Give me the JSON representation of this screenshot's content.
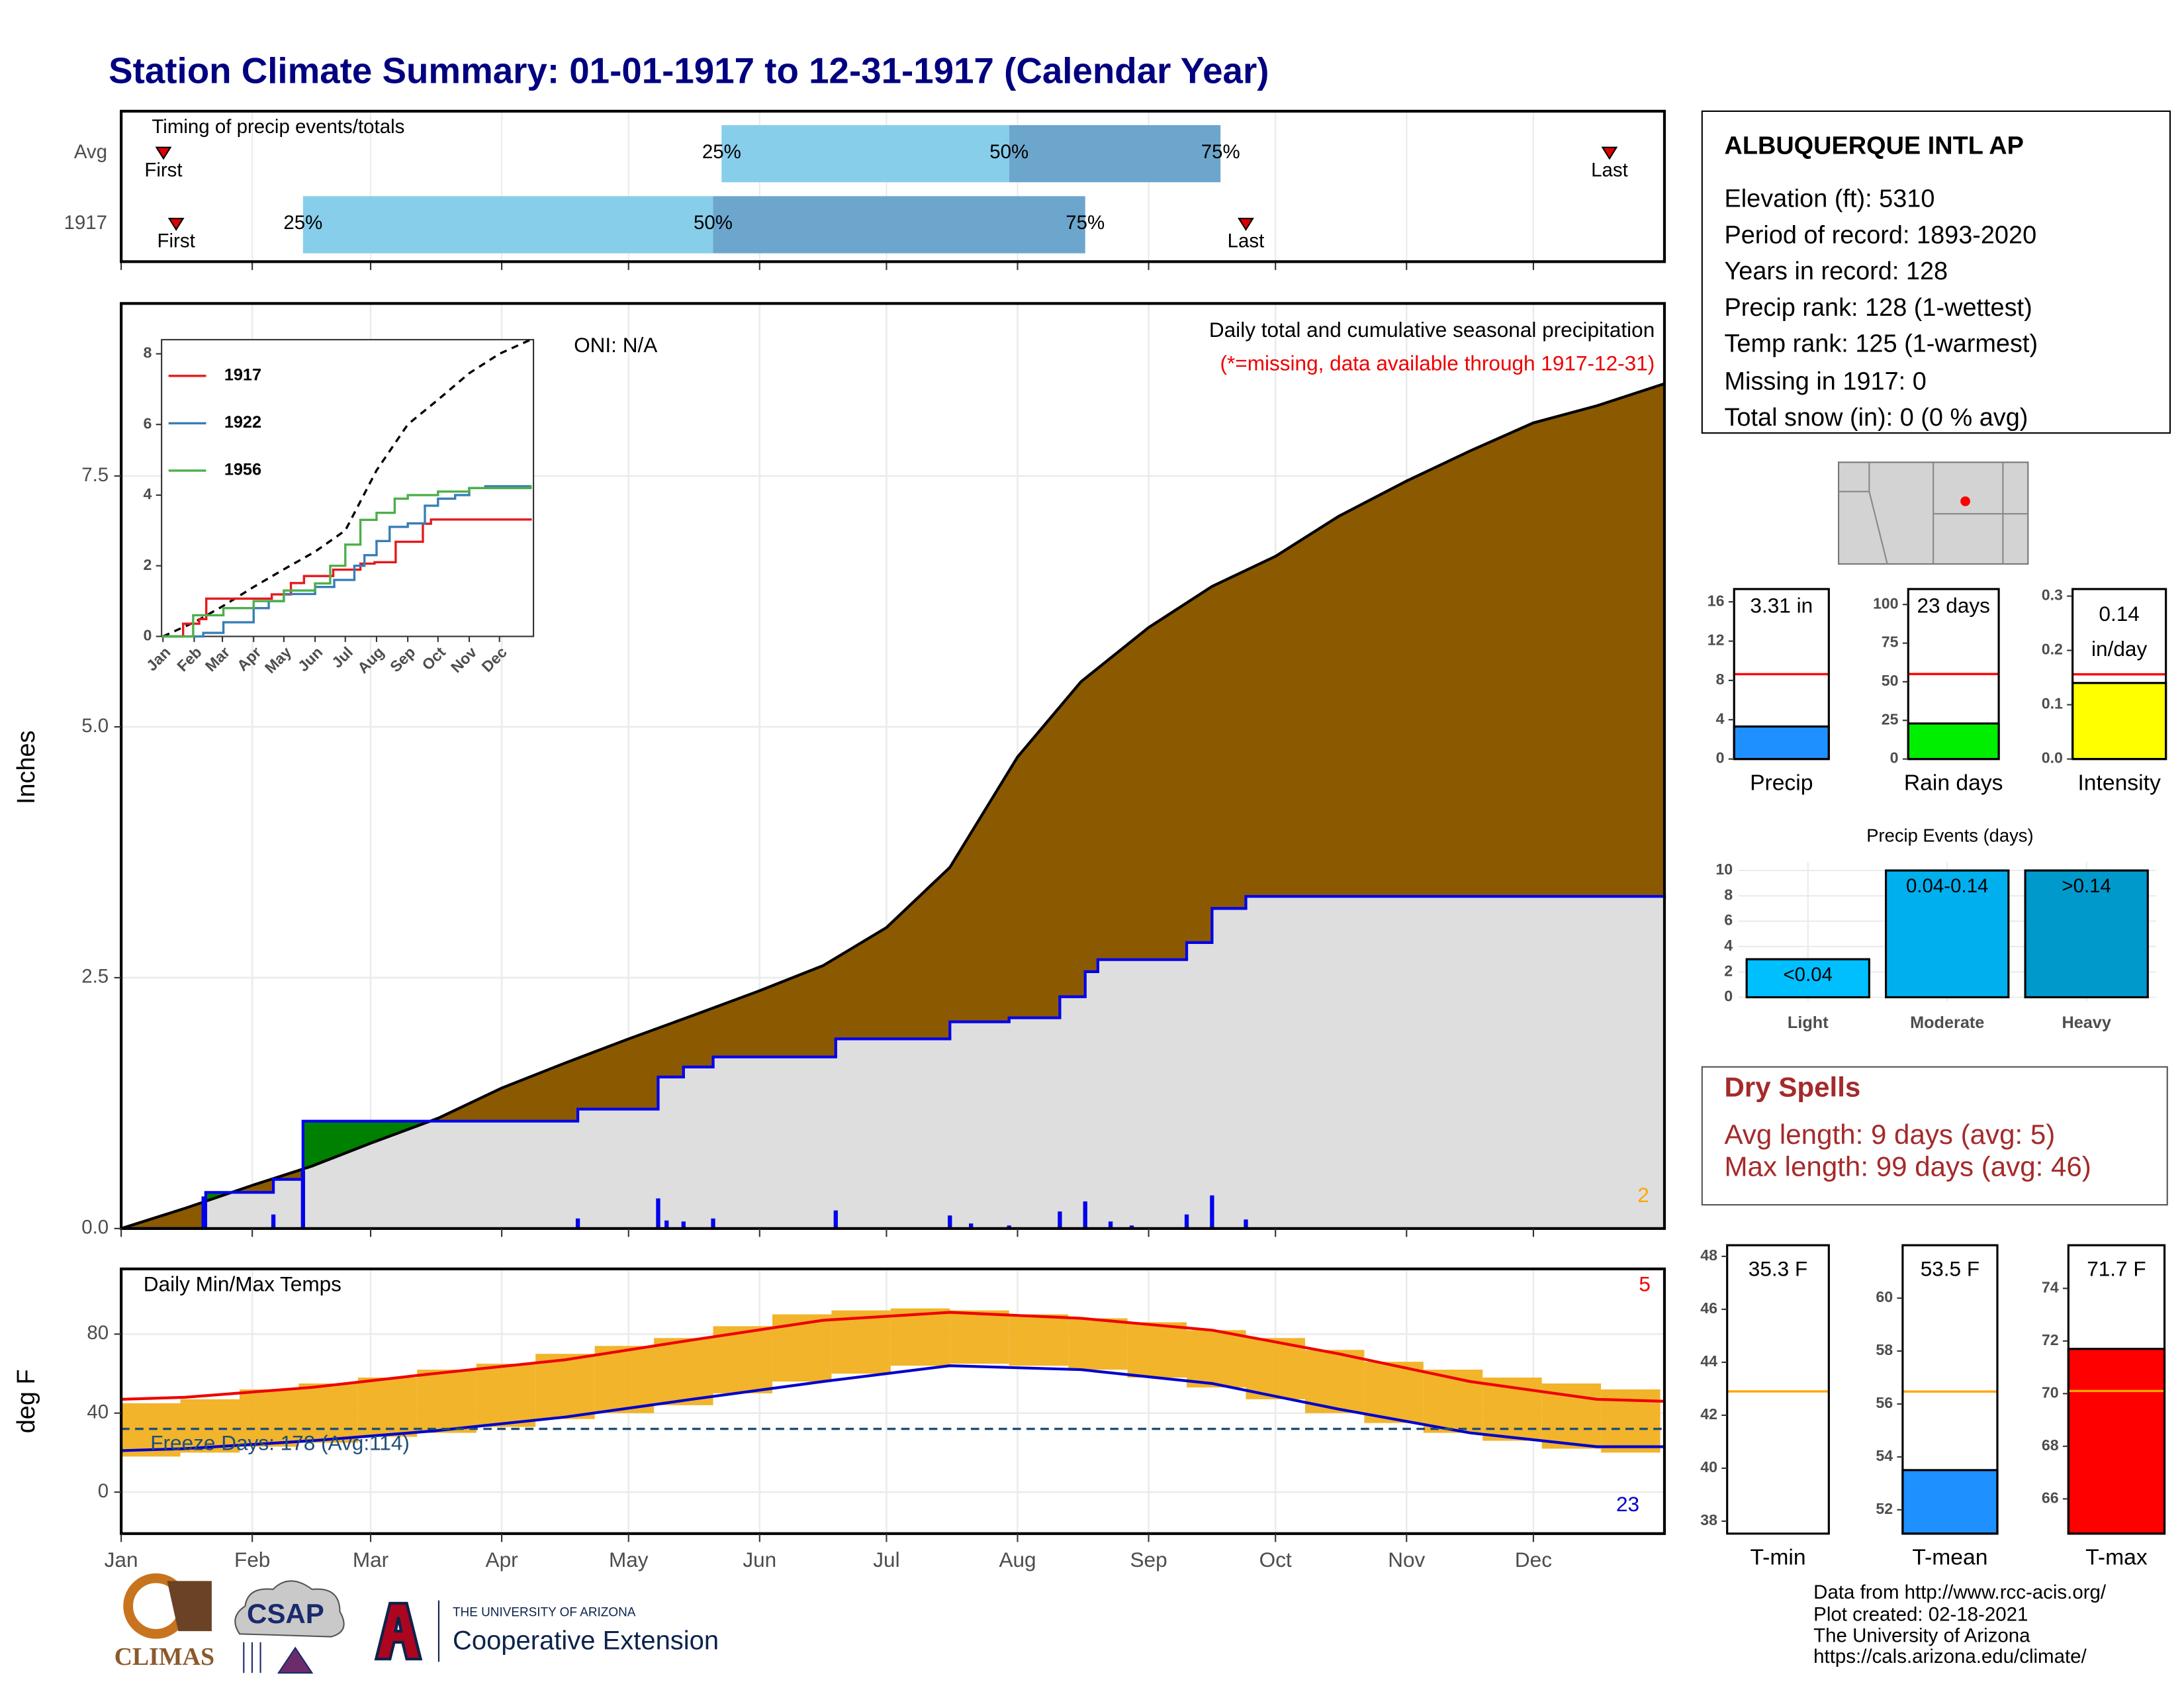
{
  "title": "Station Climate Summary: 01-01-1917 to 12-31-1917 (Calendar Year)",
  "station": {
    "name": "ALBUQUERQUE INTL AP",
    "lines": [
      "Elevation (ft): 5310",
      "Period of record: 1893-2020",
      "Years in record: 128",
      "Precip rank: 128 (1-wettest)",
      "Temp rank: 125 (1-warmest)",
      "Missing in 1917: 0",
      "Total snow (in): 0 (0 % avg)"
    ]
  },
  "dry_spells": {
    "title": "Dry Spells",
    "lines": [
      "Avg length: 9 days (avg: 5)",
      "Max length: 99 days (avg: 46)"
    ]
  },
  "footer": [
    "Data from http://www.rcc-acis.org/",
    "Plot created: 02-18-2021",
    "The University of Arizona",
    "https://cals.arizona.edu/climate/"
  ],
  "logos": [
    "CLIMAS",
    "CSAP",
    "THE UNIVERSITY OF ARIZONA",
    "Cooperative Extension"
  ],
  "chart_data": [
    {
      "type": "timing",
      "title": "Timing of precip events/totals",
      "xlim": [
        0,
        365
      ],
      "xticks": [
        0,
        31,
        59,
        90,
        120,
        151,
        181,
        212,
        243,
        273,
        304,
        334
      ],
      "labels": {
        "first": "First",
        "last": "Last",
        "p25": "25%",
        "p50": "50%",
        "p75": "75%"
      },
      "colors": [
        "#87ceeb",
        "#6ca6cd"
      ],
      "marker_color": "#e00000",
      "rows": [
        {
          "name": "Avg",
          "first": 10,
          "p25": 142,
          "p50": 210,
          "p75": 260,
          "last": 352
        },
        {
          "name": "1917",
          "first": 13,
          "p25": 43,
          "p50": 140,
          "p75": 228,
          "last": 266
        }
      ]
    },
    {
      "type": "precip",
      "ylabel": "Inches",
      "oni": "ONI: N/A",
      "subtitle": "Daily total and cumulative seasonal precipitation",
      "note": "(*=missing, data available through 1917-12-31)",
      "corner_count": 2,
      "xlim": [
        0,
        365
      ],
      "ylim": [
        0,
        9.22
      ],
      "xticks": [
        0,
        31,
        59,
        90,
        120,
        151,
        181,
        212,
        243,
        273,
        304,
        334
      ],
      "yticks": [
        {
          "value": 0,
          "label": "0.0"
        },
        2.5,
        {
          "value": 5,
          "label": "5.0"
        },
        {
          "value": 7.5,
          "label": "7.5"
        }
      ],
      "grid": true,
      "avg": {
        "color": "#8b5a00",
        "x": [
          0,
          15,
          31,
          45,
          59,
          75,
          90,
          105,
          120,
          135,
          151,
          166,
          181,
          196,
          212,
          227,
          243,
          258,
          273,
          288,
          304,
          319,
          334,
          349,
          365
        ],
        "values": [
          0,
          0.2,
          0.43,
          0.62,
          0.85,
          1.1,
          1.4,
          1.65,
          1.89,
          2.12,
          2.37,
          2.62,
          3.0,
          3.6,
          4.7,
          5.45,
          5.99,
          6.4,
          6.7,
          7.1,
          7.45,
          7.75,
          8.03,
          8.2,
          8.42
        ]
      },
      "year": {
        "color": "#0000ee",
        "above_color": "#008000",
        "x": [
          0,
          20,
          36,
          43,
          108,
          127,
          133,
          140,
          169,
          196,
          210,
          222,
          228,
          231,
          252,
          258,
          266,
          365
        ],
        "values": [
          0,
          0.36,
          0.49,
          1.07,
          1.19,
          1.51,
          1.61,
          1.71,
          1.89,
          2.06,
          2.1,
          2.31,
          2.56,
          2.68,
          2.85,
          3.19,
          3.31,
          3.31
        ]
      },
      "daily": {
        "color": "#0000ee",
        "x": [
          19.5,
          36,
          43,
          108,
          127,
          129,
          133,
          140,
          169,
          196,
          201,
          210,
          222,
          228,
          234,
          239,
          252,
          258,
          266
        ],
        "values": [
          0.32,
          0.14,
          0.58,
          0.1,
          0.3,
          0.08,
          0.07,
          0.1,
          0.18,
          0.13,
          0.05,
          0.03,
          0.17,
          0.27,
          0.07,
          0.03,
          0.14,
          0.33,
          0.09
        ]
      }
    },
    {
      "type": "line",
      "xlim": [
        0,
        365
      ],
      "ylim": [
        0,
        8.4
      ],
      "yticks": [
        0,
        2,
        4,
        6,
        8
      ],
      "legend": "top-left",
      "xticks": [
        {
          "value": 0,
          "label": "Jan"
        },
        {
          "value": 31,
          "label": "Feb"
        },
        {
          "value": 59,
          "label": "Mar"
        },
        {
          "value": 90,
          "label": "Apr"
        },
        {
          "value": 120,
          "label": "May"
        },
        {
          "value": 151,
          "label": "Jun"
        },
        {
          "value": 181,
          "label": "Jul"
        },
        {
          "value": 212,
          "label": "Aug"
        },
        {
          "value": 243,
          "label": "Sep"
        },
        {
          "value": 273,
          "label": "Oct"
        },
        {
          "value": 304,
          "label": "Nov"
        },
        {
          "value": 334,
          "label": "Dec"
        }
      ],
      "series": [
        {
          "name": "1917",
          "color": "#e41a1c",
          "x": [
            0,
            20,
            36,
            43,
            108,
            127,
            140,
            169,
            196,
            210,
            231,
            258,
            266,
            365
          ],
          "values": [
            0,
            0.36,
            0.49,
            1.07,
            1.19,
            1.51,
            1.71,
            1.89,
            2.06,
            2.1,
            2.68,
            3.19,
            3.31,
            3.31
          ]
        },
        {
          "name": "1922",
          "color": "#377eb8",
          "x": [
            0,
            40,
            60,
            90,
            105,
            120,
            151,
            170,
            190,
            200,
            212,
            225,
            243,
            260,
            273,
            290,
            304,
            320,
            365
          ],
          "values": [
            0,
            0.1,
            0.4,
            0.8,
            1.0,
            1.2,
            1.4,
            1.6,
            2.0,
            2.3,
            2.7,
            3.1,
            3.2,
            3.7,
            3.9,
            4.0,
            4.2,
            4.25,
            4.25
          ]
        },
        {
          "name": "1956",
          "color": "#4daf4a",
          "x": [
            0,
            30,
            60,
            90,
            120,
            151,
            166,
            181,
            196,
            212,
            230,
            243,
            273,
            304,
            334,
            365
          ],
          "values": [
            0,
            0.6,
            0.8,
            1.0,
            1.3,
            1.5,
            2.0,
            2.6,
            3.3,
            3.5,
            3.9,
            4.0,
            4.1,
            4.2,
            4.2,
            4.25
          ]
        }
      ],
      "average": {
        "color": "#000000",
        "x": [
          0,
          31,
          59,
          90,
          120,
          151,
          181,
          212,
          243,
          273,
          304,
          334,
          365
        ],
        "values": [
          0,
          0.4,
          0.85,
          1.4,
          1.9,
          2.4,
          3.0,
          4.7,
          6.0,
          6.7,
          7.45,
          8.0,
          8.4
        ]
      }
    },
    {
      "type": "temps",
      "title": "Daily Min/Max Temps",
      "ylabel": "deg F",
      "freeze_label": "Freeze Days: 178 (Avg:114)",
      "freeze": 32,
      "record_high_count": 5,
      "record_low_count": 23,
      "xlim": [
        0,
        365
      ],
      "ylim": [
        -21,
        113
      ],
      "yticks": [
        0,
        40,
        80
      ],
      "grid": true,
      "xticks": [
        {
          "value": 0,
          "label": "Jan"
        },
        {
          "value": 31,
          "label": "Feb"
        },
        {
          "value": 59,
          "label": "Mar"
        },
        {
          "value": 90,
          "label": "Apr"
        },
        {
          "value": 120,
          "label": "May"
        },
        {
          "value": 151,
          "label": "Jun"
        },
        {
          "value": 181,
          "label": "Jul"
        },
        {
          "value": 212,
          "label": "Aug"
        },
        {
          "value": 243,
          "label": "Sep"
        },
        {
          "value": 273,
          "label": "Oct"
        },
        {
          "value": 304,
          "label": "Nov"
        },
        {
          "value": 334,
          "label": "Dec"
        }
      ],
      "bars": {
        "color": "#f0b020",
        "width": 14,
        "x": [
          0,
          14,
          28,
          42,
          56,
          70,
          84,
          98,
          112,
          126,
          140,
          154,
          168,
          182,
          196,
          210,
          224,
          238,
          252,
          266,
          280,
          294,
          308,
          322,
          336,
          350
        ],
        "low": [
          18,
          20,
          23,
          25,
          28,
          30,
          33,
          37,
          40,
          44,
          50,
          56,
          60,
          64,
          65,
          64,
          62,
          58,
          53,
          47,
          40,
          35,
          30,
          26,
          22,
          20
        ],
        "high": [
          45,
          47,
          52,
          55,
          58,
          62,
          65,
          70,
          74,
          78,
          84,
          90,
          92,
          93,
          92,
          90,
          88,
          86,
          82,
          78,
          72,
          66,
          62,
          58,
          55,
          52
        ]
      },
      "avg_max": {
        "color": "#ee0000",
        "x": [
          0,
          15,
          45,
          74,
          105,
          135,
          166,
          196,
          227,
          258,
          288,
          319,
          349,
          365
        ],
        "values": [
          47,
          48,
          53,
          60,
          67,
          77,
          87,
          91,
          88,
          82,
          70,
          56,
          47,
          46
        ]
      },
      "avg_min": {
        "color": "#0000cc",
        "x": [
          0,
          15,
          45,
          74,
          105,
          135,
          166,
          196,
          227,
          258,
          288,
          319,
          349,
          365
        ],
        "values": [
          21,
          22,
          26,
          31,
          38,
          47,
          56,
          64,
          62,
          55,
          42,
          30,
          23,
          23
        ]
      },
      "freeze_color": "#1f4e79"
    },
    {
      "type": "bar",
      "categories": [
        "Precip"
      ],
      "values": [
        3.31
      ],
      "value_labels": [
        "3.31 in"
      ],
      "reference": 8.64,
      "reference_color": "#ff0000",
      "color": "#1e90ff",
      "ylim": [
        0,
        17.3
      ],
      "yticks": [
        0,
        4,
        8,
        12,
        16
      ]
    },
    {
      "type": "bar",
      "categories": [
        "Rain days"
      ],
      "values": [
        23
      ],
      "value_labels": [
        "23 days"
      ],
      "reference": 55,
      "reference_color": "#ff0000",
      "color": "#00ee00",
      "ylim": [
        0,
        110
      ],
      "yticks": [
        0,
        25,
        50,
        75,
        100
      ]
    },
    {
      "type": "bar",
      "categories": [
        "Intensity"
      ],
      "values": [
        0.14
      ],
      "value_labels": [
        "0.14"
      ],
      "unit_label": "in/day",
      "reference": 0.156,
      "reference_color": "#ff0000",
      "color": "#ffff00",
      "ylim": [
        0,
        0.313
      ],
      "yticks": [
        {
          "value": 0,
          "label": "0.0"
        },
        0.1,
        0.2,
        0.3
      ]
    },
    {
      "type": "events",
      "title": "Precip Events (days)",
      "categories": [
        "Light",
        "Moderate",
        "Heavy"
      ],
      "values": [
        3,
        10,
        10
      ],
      "range_labels": [
        "<0.04",
        "0.04-0.14",
        ">0.14"
      ],
      "colors": [
        "#00bfff",
        "#00b0ee",
        "#0099cc"
      ],
      "ylim": [
        0,
        10.66
      ],
      "yticks": [
        0,
        2,
        4,
        6,
        8,
        10
      ],
      "grid": true
    },
    {
      "type": "bar",
      "categories": [
        "T-min"
      ],
      "values": [
        35.3
      ],
      "value_labels": [
        "35.3 F"
      ],
      "reference": 42.9,
      "reference_color": "#ffa500",
      "color": "#1e90ff",
      "ylim": [
        37.53,
        48.42
      ],
      "yticks": [
        38,
        40,
        42,
        44,
        46,
        48
      ]
    },
    {
      "type": "bar",
      "categories": [
        "T-mean"
      ],
      "values": [
        53.5
      ],
      "value_labels": [
        "53.5 F"
      ],
      "reference": 56.47,
      "reference_color": "#ffa500",
      "color": "#1e90ff",
      "ylim": [
        51.1,
        62
      ],
      "yticks": [
        52,
        54,
        56,
        58,
        60
      ]
    },
    {
      "type": "bar",
      "categories": [
        "T-max"
      ],
      "values": [
        71.7
      ],
      "value_labels": [
        "71.7 F"
      ],
      "reference": 70.1,
      "reference_color": "#ffa500",
      "color": "#ff0000",
      "ylim": [
        64.68,
        75.64
      ],
      "yticks": [
        66,
        68,
        70,
        72,
        74
      ]
    }
  ]
}
